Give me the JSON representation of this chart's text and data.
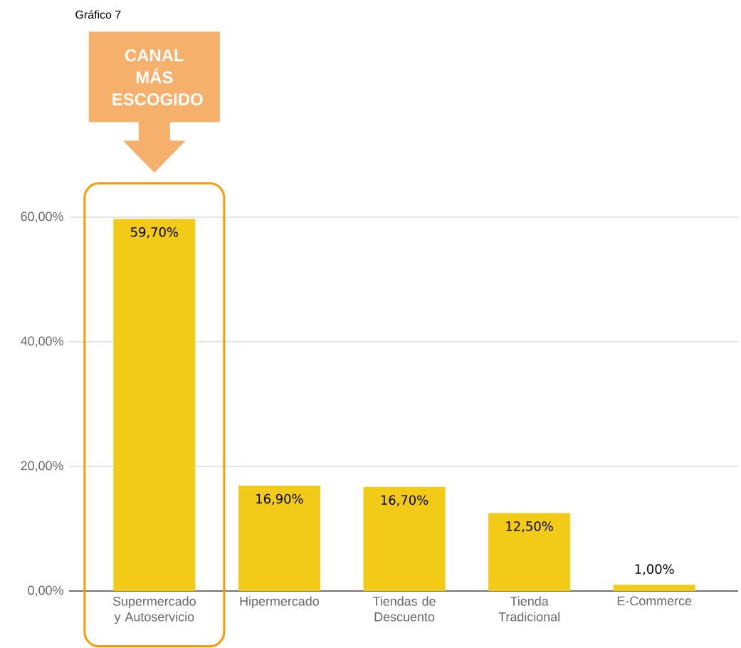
{
  "chart_data": {
    "type": "bar",
    "title": "Gráfico 7",
    "categories": [
      "Supermercado y Autoservicio",
      "Hipermercado",
      "Tiendas de Descuento",
      "Tienda Tradicional",
      "E-Commerce"
    ],
    "values": [
      59.7,
      16.9,
      16.7,
      12.5,
      1.0
    ],
    "value_labels": [
      "59,70%",
      "16,90%",
      "16,70%",
      "12,50%",
      "1,00%"
    ],
    "color": "#f2ca18",
    "ylim": [
      0,
      60
    ],
    "yticks": [
      {
        "value": 0,
        "label": "0,00%"
      },
      {
        "value": 20,
        "label": "20,00%"
      },
      {
        "value": 40,
        "label": "40,00%"
      },
      {
        "value": 60,
        "label": "60,00%"
      }
    ],
    "grid": "y",
    "annotations": [
      "CANAL MÁS ESCOGIDO"
    ]
  }
}
